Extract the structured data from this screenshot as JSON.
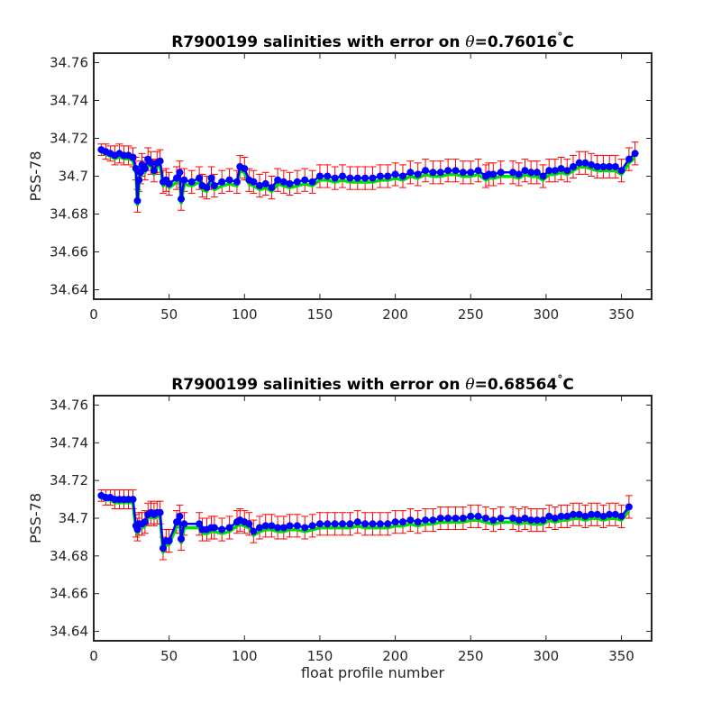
{
  "figure": {
    "xlabel": "float profile number"
  },
  "chart_data": [
    {
      "type": "line",
      "title_prefix": "R7900199 salinities with error on ",
      "title_theta": "θ",
      "title_suffix": "=0.76016",
      "title_degree": "°",
      "title_unit": "C",
      "ylabel": "PSS-78",
      "xlim": [
        0,
        370
      ],
      "ylim": [
        34.635,
        34.765
      ],
      "x_ticks": [
        0,
        50,
        100,
        150,
        200,
        250,
        300,
        350
      ],
      "y_ticks": [
        34.64,
        34.66,
        34.68,
        34.7,
        34.72,
        34.74,
        34.76
      ],
      "x_tick_labels": [
        "0",
        "50",
        "100",
        "150",
        "200",
        "250",
        "300",
        "350"
      ],
      "y_tick_labels": [
        "34.64",
        "34.66",
        "34.68",
        "34.7",
        "34.72",
        "34.74",
        "34.76"
      ],
      "colors": {
        "errorbars": "#ff0000",
        "reference_line": "#00e000",
        "profile_line": "#0000ff",
        "markers": "#0000ff"
      },
      "series": [
        {
          "x": [
            5,
            8,
            11,
            14,
            17,
            20,
            23,
            26,
            28,
            29,
            30,
            31,
            32,
            34,
            36,
            38,
            40,
            42,
            44,
            46,
            48,
            50,
            55,
            57,
            58,
            60,
            65,
            70,
            72,
            75,
            78,
            80,
            85,
            90,
            95,
            97,
            100,
            103,
            106,
            110,
            114,
            118,
            122,
            126,
            130,
            135,
            140,
            145,
            150,
            155,
            160,
            165,
            170,
            175,
            180,
            185,
            190,
            195,
            200,
            205,
            210,
            215,
            220,
            225,
            230,
            235,
            240,
            245,
            250,
            255,
            260,
            262,
            265,
            270,
            278,
            282,
            286,
            290,
            294,
            298,
            302,
            306,
            310,
            314,
            318,
            322,
            326,
            330,
            334,
            338,
            342,
            346,
            350,
            355,
            359
          ],
          "y": [
            34.714,
            34.713,
            34.712,
            34.711,
            34.712,
            34.711,
            34.711,
            34.71,
            34.704,
            34.687,
            34.698,
            34.702,
            34.706,
            34.704,
            34.709,
            34.707,
            34.703,
            34.707,
            34.708,
            34.697,
            34.698,
            34.696,
            34.699,
            34.702,
            34.688,
            34.698,
            34.697,
            34.699,
            34.695,
            34.694,
            34.699,
            34.695,
            34.697,
            34.698,
            34.697,
            34.705,
            34.704,
            34.698,
            34.697,
            34.695,
            34.696,
            34.694,
            34.698,
            34.697,
            34.696,
            34.697,
            34.698,
            34.697,
            34.7,
            34.7,
            34.699,
            34.7,
            34.699,
            34.699,
            34.699,
            34.699,
            34.7,
            34.7,
            34.701,
            34.7,
            34.702,
            34.701,
            34.703,
            34.702,
            34.702,
            34.703,
            34.703,
            34.702,
            34.702,
            34.703,
            34.7,
            34.701,
            34.701,
            34.702,
            34.702,
            34.701,
            34.703,
            34.702,
            34.702,
            34.7,
            34.703,
            34.703,
            34.704,
            34.703,
            34.705,
            34.707,
            34.707,
            34.706,
            34.705,
            34.705,
            34.705,
            34.705,
            34.703,
            34.709,
            34.712
          ],
          "err": [
            0.003,
            0.004,
            0.004,
            0.005,
            0.005,
            0.005,
            0.005,
            0.005,
            0.006,
            0.006,
            0.006,
            0.006,
            0.006,
            0.006,
            0.006,
            0.006,
            0.006,
            0.006,
            0.006,
            0.006,
            0.006,
            0.006,
            0.006,
            0.006,
            0.006,
            0.006,
            0.006,
            0.006,
            0.006,
            0.006,
            0.006,
            0.006,
            0.006,
            0.006,
            0.006,
            0.006,
            0.006,
            0.006,
            0.006,
            0.006,
            0.006,
            0.006,
            0.006,
            0.006,
            0.006,
            0.006,
            0.006,
            0.006,
            0.006,
            0.006,
            0.006,
            0.006,
            0.006,
            0.006,
            0.006,
            0.006,
            0.006,
            0.006,
            0.006,
            0.006,
            0.006,
            0.006,
            0.006,
            0.006,
            0.006,
            0.006,
            0.006,
            0.006,
            0.006,
            0.006,
            0.006,
            0.006,
            0.006,
            0.006,
            0.006,
            0.006,
            0.006,
            0.006,
            0.006,
            0.006,
            0.006,
            0.006,
            0.006,
            0.006,
            0.006,
            0.006,
            0.006,
            0.006,
            0.006,
            0.006,
            0.006,
            0.006,
            0.006,
            0.006,
            0.006
          ]
        }
      ]
    },
    {
      "type": "line",
      "title_prefix": "R7900199 salinities with error on ",
      "title_theta": "θ",
      "title_suffix": "=0.68564",
      "title_degree": "°",
      "title_unit": "C",
      "ylabel": "PSS-78",
      "xlim": [
        0,
        370
      ],
      "ylim": [
        34.635,
        34.765
      ],
      "x_ticks": [
        0,
        50,
        100,
        150,
        200,
        250,
        300,
        350
      ],
      "y_ticks": [
        34.64,
        34.66,
        34.68,
        34.7,
        34.72,
        34.74,
        34.76
      ],
      "x_tick_labels": [
        "0",
        "50",
        "100",
        "150",
        "200",
        "250",
        "300",
        "350"
      ],
      "y_tick_labels": [
        "34.64",
        "34.66",
        "34.68",
        "34.7",
        "34.72",
        "34.74",
        "34.76"
      ],
      "colors": {
        "errorbars": "#ff0000",
        "reference_line": "#00e000",
        "profile_line": "#0000ff",
        "markers": "#0000ff"
      },
      "series": [
        {
          "x": [
            5,
            8,
            11,
            14,
            17,
            20,
            23,
            26,
            28,
            29,
            30,
            32,
            34,
            36,
            38,
            40,
            42,
            44,
            46,
            48,
            50,
            55,
            57,
            58,
            60,
            70,
            72,
            75,
            78,
            80,
            85,
            90,
            95,
            97,
            100,
            103,
            106,
            110,
            114,
            118,
            122,
            126,
            130,
            135,
            140,
            145,
            150,
            155,
            160,
            165,
            170,
            175,
            180,
            185,
            190,
            195,
            200,
            205,
            210,
            215,
            220,
            225,
            230,
            235,
            240,
            245,
            250,
            255,
            260,
            265,
            270,
            278,
            282,
            286,
            290,
            294,
            298,
            302,
            306,
            310,
            314,
            318,
            322,
            326,
            330,
            334,
            338,
            342,
            346,
            350,
            355
          ],
          "y": [
            34.712,
            34.711,
            34.711,
            34.71,
            34.71,
            34.71,
            34.71,
            34.71,
            34.696,
            34.694,
            34.697,
            34.697,
            34.698,
            34.702,
            34.703,
            34.702,
            34.703,
            34.703,
            34.684,
            34.688,
            34.688,
            34.698,
            34.701,
            34.689,
            34.697,
            34.697,
            34.694,
            34.694,
            34.695,
            34.695,
            34.694,
            34.695,
            34.698,
            34.699,
            34.698,
            34.697,
            34.693,
            34.695,
            34.696,
            34.696,
            34.695,
            34.695,
            34.696,
            34.696,
            34.695,
            34.696,
            34.697,
            34.697,
            34.697,
            34.697,
            34.697,
            34.698,
            34.697,
            34.697,
            34.697,
            34.697,
            34.698,
            34.698,
            34.699,
            34.698,
            34.699,
            34.699,
            34.7,
            34.7,
            34.7,
            34.7,
            34.701,
            34.701,
            34.7,
            34.699,
            34.7,
            34.7,
            34.699,
            34.7,
            34.699,
            34.699,
            34.699,
            34.701,
            34.7,
            34.701,
            34.701,
            34.702,
            34.702,
            34.701,
            34.702,
            34.702,
            34.701,
            34.702,
            34.702,
            34.701,
            34.706
          ],
          "err": [
            0.003,
            0.004,
            0.004,
            0.005,
            0.005,
            0.005,
            0.005,
            0.005,
            0.006,
            0.006,
            0.006,
            0.006,
            0.006,
            0.006,
            0.006,
            0.006,
            0.006,
            0.006,
            0.006,
            0.006,
            0.006,
            0.006,
            0.006,
            0.006,
            0.006,
            0.006,
            0.006,
            0.006,
            0.006,
            0.006,
            0.006,
            0.006,
            0.006,
            0.006,
            0.006,
            0.006,
            0.006,
            0.006,
            0.006,
            0.006,
            0.006,
            0.006,
            0.006,
            0.006,
            0.006,
            0.006,
            0.006,
            0.006,
            0.006,
            0.006,
            0.006,
            0.006,
            0.006,
            0.006,
            0.006,
            0.006,
            0.006,
            0.006,
            0.006,
            0.006,
            0.006,
            0.006,
            0.006,
            0.006,
            0.006,
            0.006,
            0.006,
            0.006,
            0.006,
            0.006,
            0.006,
            0.006,
            0.006,
            0.006,
            0.006,
            0.006,
            0.006,
            0.006,
            0.006,
            0.006,
            0.006,
            0.006,
            0.006,
            0.006,
            0.006,
            0.006,
            0.006,
            0.006,
            0.006,
            0.006,
            0.006
          ]
        }
      ]
    }
  ]
}
